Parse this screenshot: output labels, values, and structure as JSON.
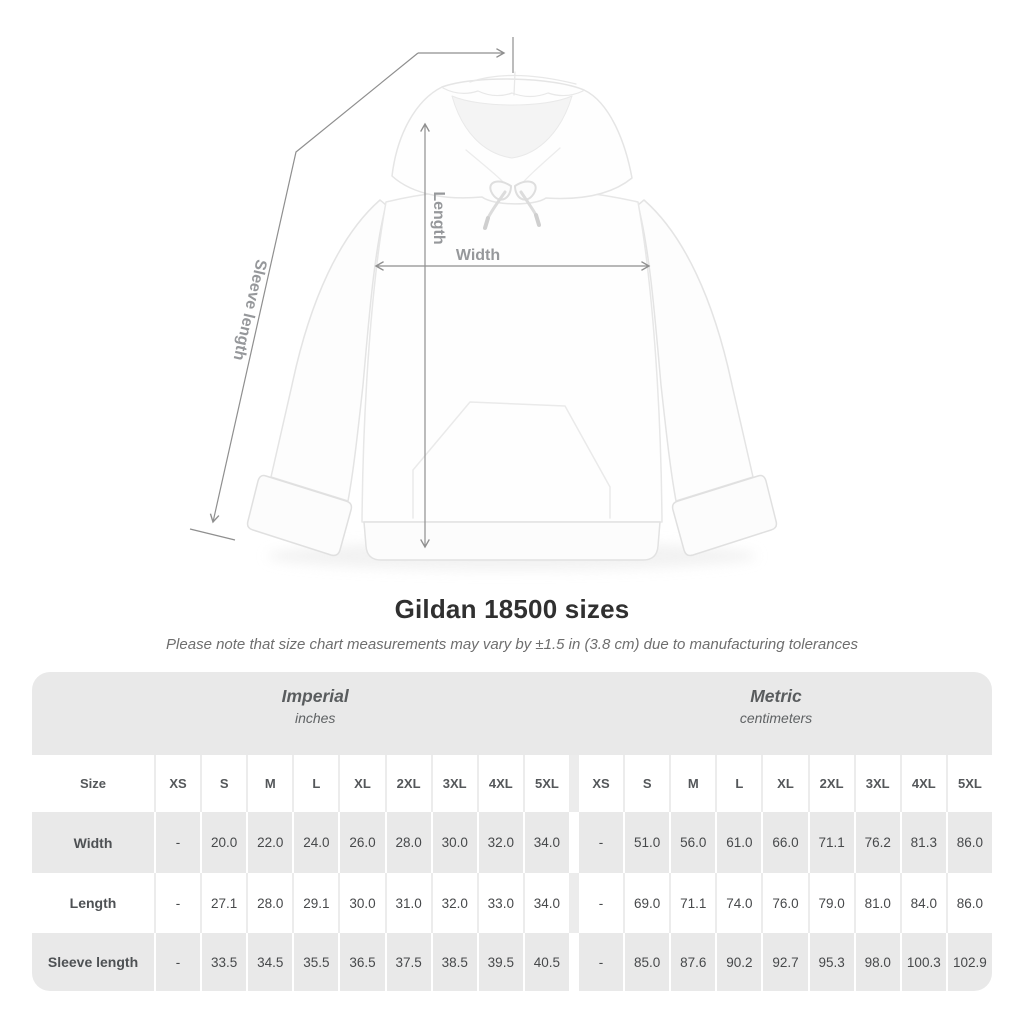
{
  "colors": {
    "background": "#ffffff",
    "measure_line": "#8f8f8f",
    "measure_label": "#96989b",
    "table_band": "#e9e9e9",
    "table_gap_on_white": "#ececec",
    "title_text": "#303030",
    "subtitle_text": "#6e6e6e",
    "cell_text": "#47494b"
  },
  "diagram": {
    "sleeve_label": "Sleeve length",
    "length_label": "Length",
    "width_label": "Width"
  },
  "title": "Gildan 18500 sizes",
  "subtitle": "Please note that size chart measurements may vary by ±1.5 in (3.8 cm) due to manufacturing tolerances",
  "table": {
    "groups": [
      {
        "name": "Imperial",
        "unit": "inches"
      },
      {
        "name": "Metric",
        "unit": "centimeters"
      }
    ],
    "size_label": "Size",
    "sizes": [
      "XS",
      "S",
      "M",
      "L",
      "XL",
      "2XL",
      "3XL",
      "4XL",
      "5XL"
    ],
    "rows": [
      {
        "label": "Width",
        "imperial": [
          "-",
          "20.0",
          "22.0",
          "24.0",
          "26.0",
          "28.0",
          "30.0",
          "32.0",
          "34.0"
        ],
        "metric": [
          "-",
          "51.0",
          "56.0",
          "61.0",
          "66.0",
          "71.1",
          "76.2",
          "81.3",
          "86.0"
        ]
      },
      {
        "label": "Length",
        "imperial": [
          "-",
          "27.1",
          "28.0",
          "29.1",
          "30.0",
          "31.0",
          "32.0",
          "33.0",
          "34.0"
        ],
        "metric": [
          "-",
          "69.0",
          "71.1",
          "74.0",
          "76.0",
          "79.0",
          "81.0",
          "84.0",
          "86.0"
        ]
      },
      {
        "label": "Sleeve length",
        "imperial": [
          "-",
          "33.5",
          "34.5",
          "35.5",
          "36.5",
          "37.5",
          "38.5",
          "39.5",
          "40.5"
        ],
        "metric": [
          "-",
          "85.0",
          "87.6",
          "90.2",
          "92.7",
          "95.3",
          "98.0",
          "100.3",
          "102.9"
        ]
      }
    ]
  }
}
